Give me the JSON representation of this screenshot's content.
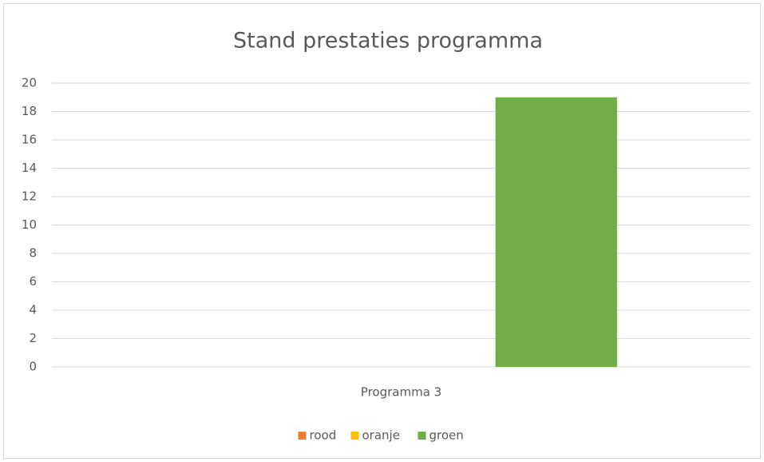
{
  "chart_data": {
    "type": "bar",
    "title": "Stand prestaties programma",
    "categories": [
      "Programma 3"
    ],
    "series": [
      {
        "name": "rood",
        "color": "#ed7d31",
        "values": [
          0
        ]
      },
      {
        "name": "oranje",
        "color": "#ffc000",
        "values": [
          0
        ]
      },
      {
        "name": "groen",
        "color": "#70ad47",
        "values": [
          19
        ]
      }
    ],
    "ylim": [
      0,
      20
    ],
    "yticks": [
      0,
      2,
      4,
      6,
      8,
      10,
      12,
      14,
      16,
      18,
      20
    ],
    "grid": true,
    "legend": "bottom"
  }
}
